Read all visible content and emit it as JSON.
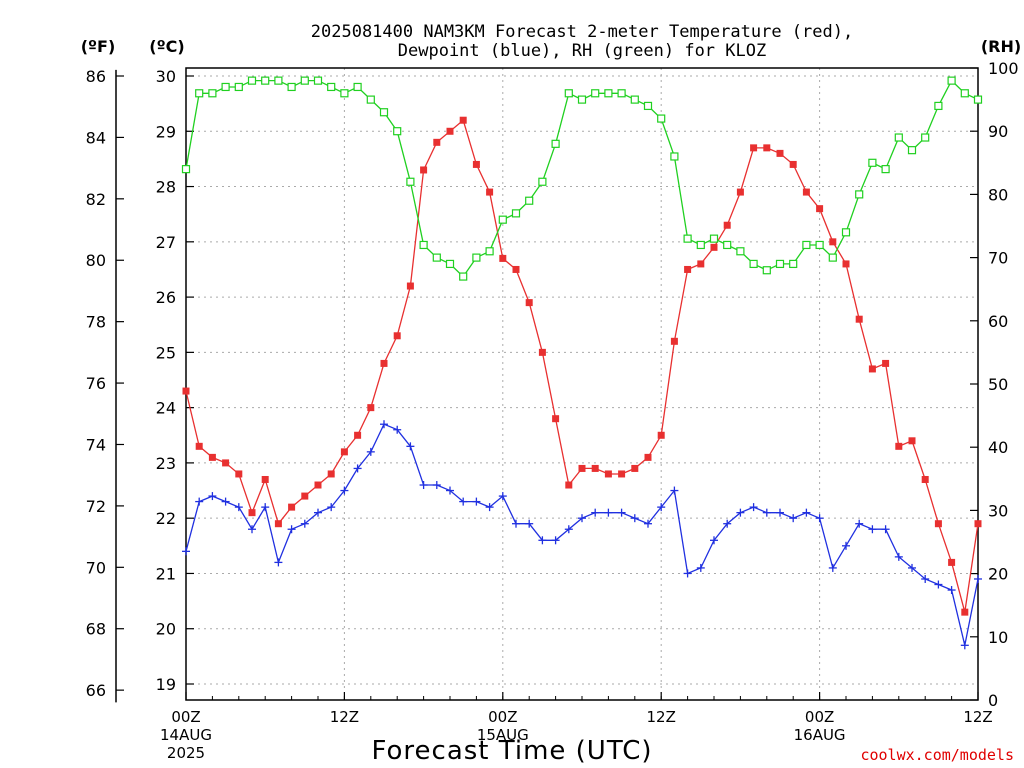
{
  "chart_data": {
    "type": "line",
    "title_lines": [
      "2025081400 NAM3KM Forecast 2-meter Temperature (red),",
      "Dewpoint (blue), RH (green) for KLOZ"
    ],
    "xlabel": "Forecast Time (UTC)",
    "credit": "coolwx.com/models",
    "axes": {
      "left_f": {
        "unit_label": "(ºF)",
        "ticks": [
          66,
          68,
          70,
          72,
          74,
          76,
          78,
          80,
          82,
          84,
          86
        ],
        "range": [
          65.6,
          86.2
        ]
      },
      "left_c": {
        "unit_label": "(ºC)",
        "ticks": [
          19,
          20,
          21,
          22,
          23,
          24,
          25,
          26,
          27,
          28,
          29,
          30
        ],
        "range": [
          18.7,
          30.1
        ]
      },
      "right_rh": {
        "unit_label": "(RH)",
        "ticks": [
          0,
          10,
          20,
          30,
          40,
          50,
          60,
          70,
          80,
          90,
          100
        ],
        "range": [
          0,
          100
        ]
      }
    },
    "x_hours_range": [
      0,
      60
    ],
    "x_ticks": [
      {
        "hour": 0,
        "labels": [
          "00Z",
          "14AUG",
          "2025"
        ]
      },
      {
        "hour": 12,
        "labels": [
          "12Z"
        ]
      },
      {
        "hour": 24,
        "labels": [
          "00Z",
          "15AUG"
        ]
      },
      {
        "hour": 36,
        "labels": [
          "12Z"
        ]
      },
      {
        "hour": 48,
        "labels": [
          "00Z",
          "16AUG"
        ]
      },
      {
        "hour": 60,
        "labels": [
          "12Z"
        ]
      }
    ],
    "grid": true,
    "series": [
      {
        "name": "Temperature",
        "color": "#e83030",
        "marker": "filled-square",
        "axis": "left_c",
        "points": [
          [
            0,
            24.3
          ],
          [
            1,
            23.3
          ],
          [
            2,
            23.1
          ],
          [
            3,
            23.0
          ],
          [
            4,
            22.8
          ],
          [
            5,
            22.1
          ],
          [
            6,
            22.7
          ],
          [
            7,
            21.9
          ],
          [
            8,
            22.2
          ],
          [
            9,
            22.4
          ],
          [
            10,
            22.6
          ],
          [
            11,
            22.8
          ],
          [
            12,
            23.2
          ],
          [
            13,
            23.5
          ],
          [
            14,
            24.0
          ],
          [
            15,
            24.8
          ],
          [
            16,
            25.3
          ],
          [
            17,
            26.2
          ],
          [
            18,
            28.3
          ],
          [
            19,
            28.8
          ],
          [
            20,
            29.0
          ],
          [
            21,
            29.2
          ],
          [
            22,
            28.4
          ],
          [
            23,
            27.9
          ],
          [
            24,
            26.7
          ],
          [
            25,
            26.5
          ],
          [
            26,
            25.9
          ],
          [
            27,
            25.0
          ],
          [
            28,
            23.8
          ],
          [
            29,
            22.6
          ],
          [
            30,
            22.9
          ],
          [
            31,
            22.9
          ],
          [
            32,
            22.8
          ],
          [
            33,
            22.8
          ],
          [
            34,
            22.9
          ],
          [
            35,
            23.1
          ],
          [
            36,
            23.5
          ],
          [
            37,
            25.2
          ],
          [
            38,
            26.5
          ],
          [
            39,
            26.6
          ],
          [
            40,
            26.9
          ],
          [
            41,
            27.3
          ],
          [
            42,
            27.9
          ],
          [
            43,
            28.7
          ],
          [
            44,
            28.7
          ],
          [
            45,
            28.6
          ],
          [
            46,
            28.4
          ],
          [
            47,
            27.9
          ],
          [
            48,
            27.6
          ],
          [
            49,
            27.0
          ],
          [
            50,
            26.6
          ],
          [
            51,
            25.6
          ],
          [
            52,
            24.7
          ],
          [
            53,
            24.8
          ],
          [
            54,
            23.3
          ],
          [
            55,
            23.4
          ],
          [
            56,
            22.7
          ],
          [
            57,
            21.9
          ],
          [
            58,
            21.2
          ],
          [
            59,
            20.3
          ],
          [
            60,
            21.9
          ]
        ]
      },
      {
        "name": "Dewpoint",
        "color": "#2030e0",
        "marker": "plus",
        "axis": "left_c",
        "points": [
          [
            0,
            21.4
          ],
          [
            1,
            22.3
          ],
          [
            2,
            22.4
          ],
          [
            3,
            22.3
          ],
          [
            4,
            22.2
          ],
          [
            5,
            21.8
          ],
          [
            6,
            22.2
          ],
          [
            7,
            21.2
          ],
          [
            8,
            21.8
          ],
          [
            9,
            21.9
          ],
          [
            10,
            22.1
          ],
          [
            11,
            22.2
          ],
          [
            12,
            22.5
          ],
          [
            13,
            22.9
          ],
          [
            14,
            23.2
          ],
          [
            15,
            23.7
          ],
          [
            16,
            23.6
          ],
          [
            17,
            23.3
          ],
          [
            18,
            22.6
          ],
          [
            19,
            22.6
          ],
          [
            20,
            22.5
          ],
          [
            21,
            22.3
          ],
          [
            22,
            22.3
          ],
          [
            23,
            22.2
          ],
          [
            24,
            22.4
          ],
          [
            25,
            21.9
          ],
          [
            26,
            21.9
          ],
          [
            27,
            21.6
          ],
          [
            28,
            21.6
          ],
          [
            29,
            21.8
          ],
          [
            30,
            22.0
          ],
          [
            31,
            22.1
          ],
          [
            32,
            22.1
          ],
          [
            33,
            22.1
          ],
          [
            34,
            22.0
          ],
          [
            35,
            21.9
          ],
          [
            36,
            22.2
          ],
          [
            37,
            22.5
          ],
          [
            38,
            21.0
          ],
          [
            39,
            21.1
          ],
          [
            40,
            21.6
          ],
          [
            41,
            21.9
          ],
          [
            42,
            22.1
          ],
          [
            43,
            22.2
          ],
          [
            44,
            22.1
          ],
          [
            45,
            22.1
          ],
          [
            46,
            22.0
          ],
          [
            47,
            22.1
          ],
          [
            48,
            22.0
          ],
          [
            49,
            21.1
          ],
          [
            50,
            21.5
          ],
          [
            51,
            21.9
          ],
          [
            52,
            21.8
          ],
          [
            53,
            21.8
          ],
          [
            54,
            21.3
          ],
          [
            55,
            21.1
          ],
          [
            56,
            20.9
          ],
          [
            57,
            20.8
          ],
          [
            58,
            20.7
          ],
          [
            59,
            19.7
          ],
          [
            60,
            20.9
          ]
        ]
      },
      {
        "name": "RH",
        "color": "#20d020",
        "marker": "open-square",
        "axis": "right_rh",
        "points": [
          [
            0,
            84
          ],
          [
            1,
            96
          ],
          [
            2,
            96
          ],
          [
            3,
            97
          ],
          [
            4,
            97
          ],
          [
            5,
            98
          ],
          [
            6,
            98
          ],
          [
            7,
            98
          ],
          [
            8,
            97
          ],
          [
            9,
            98
          ],
          [
            10,
            98
          ],
          [
            11,
            97
          ],
          [
            12,
            96
          ],
          [
            13,
            97
          ],
          [
            14,
            95
          ],
          [
            15,
            93
          ],
          [
            16,
            90
          ],
          [
            17,
            82
          ],
          [
            18,
            72
          ],
          [
            19,
            70
          ],
          [
            20,
            69
          ],
          [
            21,
            67
          ],
          [
            22,
            70
          ],
          [
            23,
            71
          ],
          [
            24,
            76
          ],
          [
            25,
            77
          ],
          [
            26,
            79
          ],
          [
            27,
            82
          ],
          [
            28,
            88
          ],
          [
            29,
            96
          ],
          [
            30,
            95
          ],
          [
            31,
            96
          ],
          [
            32,
            96
          ],
          [
            33,
            96
          ],
          [
            34,
            95
          ],
          [
            35,
            94
          ],
          [
            36,
            92
          ],
          [
            37,
            86
          ],
          [
            38,
            73
          ],
          [
            39,
            72
          ],
          [
            40,
            73
          ],
          [
            41,
            72
          ],
          [
            42,
            71
          ],
          [
            43,
            69
          ],
          [
            44,
            68
          ],
          [
            45,
            69
          ],
          [
            46,
            69
          ],
          [
            47,
            72
          ],
          [
            48,
            72
          ],
          [
            49,
            70
          ],
          [
            50,
            74
          ],
          [
            51,
            80
          ],
          [
            52,
            85
          ],
          [
            53,
            84
          ],
          [
            54,
            89
          ],
          [
            55,
            87
          ],
          [
            56,
            89
          ],
          [
            57,
            94
          ],
          [
            58,
            98
          ],
          [
            59,
            96
          ],
          [
            60,
            95
          ]
        ]
      }
    ]
  }
}
